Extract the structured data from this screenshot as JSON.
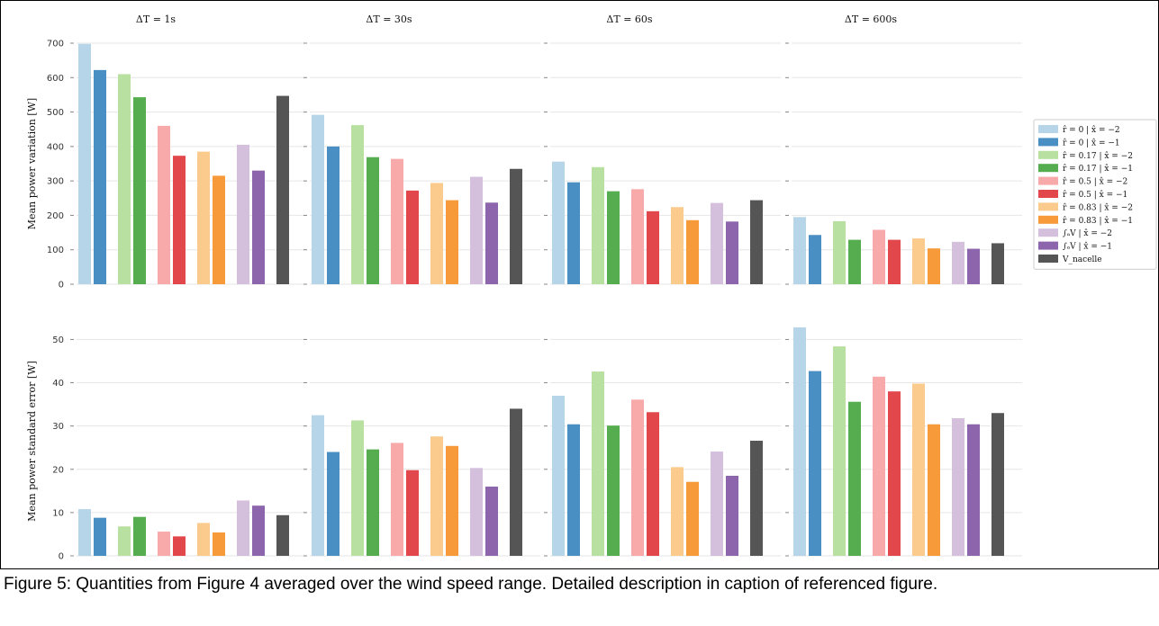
{
  "caption": "Figure 5: Quantities from Figure 4 averaged over the wind speed range. Detailed description in caption of referenced figure.",
  "chart_data": {
    "type": "bar",
    "layout": "2 rows x 4 columns of bar panels, shared y-axis per row",
    "columns": [
      "ΔT = 1s",
      "ΔT = 30s",
      "ΔT = 60s",
      "ΔT = 600s"
    ],
    "legend": {
      "placement": "right, top row",
      "entries": [
        {
          "label": "r̂ = 0 | x̂ = −2",
          "color": "#b7d5e9"
        },
        {
          "label": "r̂ = 0 | x̂ = −1",
          "color": "#4a8fc3"
        },
        {
          "label": "r̂ = 0.17 | x̂ = −2",
          "color": "#b8e0a0"
        },
        {
          "label": "r̂ = 0.17 | x̂ = −1",
          "color": "#55ad4f"
        },
        {
          "label": "r̂ = 0.5 | x̂ = −2",
          "color": "#f8a9a9"
        },
        {
          "label": "r̂ = 0.5 | x̂ = −1",
          "color": "#e2474b"
        },
        {
          "label": "r̂ = 0.83 | x̂ = −2",
          "color": "#fbcb8d"
        },
        {
          "label": "r̂ = 0.83 | x̂ = −1",
          "color": "#f79a3a"
        },
        {
          "label": "∫ₐV | x̂ = −2",
          "color": "#d4bfdd"
        },
        {
          "label": "∫ₐV | x̂ = −1",
          "color": "#8c65ad"
        },
        {
          "label": "V_nacelle",
          "color": "#555555"
        }
      ]
    },
    "group_structure": [
      [
        0,
        1
      ],
      [
        2,
        3
      ],
      [
        4,
        5
      ],
      [
        6,
        7
      ],
      [
        8,
        9
      ],
      [
        10
      ]
    ],
    "rows": [
      {
        "ylabel": "Mean power variation [W]",
        "ylim": [
          0,
          700
        ],
        "yticks": [
          0,
          100,
          200,
          300,
          400,
          500,
          600,
          700
        ],
        "grid": true,
        "panels": [
          {
            "values": [
              698,
              622,
              610,
              543,
              460,
              373,
              385,
              315,
              405,
              330,
              547
            ]
          },
          {
            "values": [
              492,
              400,
              462,
              369,
              364,
              272,
              294,
              244,
              312,
              237,
              335
            ]
          },
          {
            "values": [
              356,
              296,
              340,
              270,
              276,
              212,
              224,
              186,
              236,
              182,
              244
            ]
          },
          {
            "values": [
              195,
              143,
              183,
              129,
              158,
              129,
              133,
              104,
              123,
              103,
              119
            ]
          }
        ]
      },
      {
        "ylabel": "Mean power standard error [W]",
        "ylim": [
          0,
          53
        ],
        "yticks": [
          0,
          10,
          20,
          30,
          40,
          50
        ],
        "grid": true,
        "panels": [
          {
            "values": [
              10.8,
              8.8,
              6.8,
              9.0,
              5.6,
              4.5,
              7.6,
              5.4,
              12.8,
              11.6,
              9.4
            ]
          },
          {
            "values": [
              32.5,
              24.0,
              31.3,
              24.6,
              26.1,
              19.8,
              27.6,
              25.4,
              20.3,
              16.0,
              34.0
            ]
          },
          {
            "values": [
              37.0,
              30.4,
              42.6,
              30.1,
              36.1,
              33.2,
              20.5,
              17.1,
              24.1,
              18.5,
              26.6
            ]
          },
          {
            "values": [
              52.8,
              42.7,
              48.4,
              35.6,
              41.4,
              38.0,
              39.8,
              30.4,
              31.8,
              30.4,
              33.0
            ]
          }
        ]
      }
    ]
  }
}
